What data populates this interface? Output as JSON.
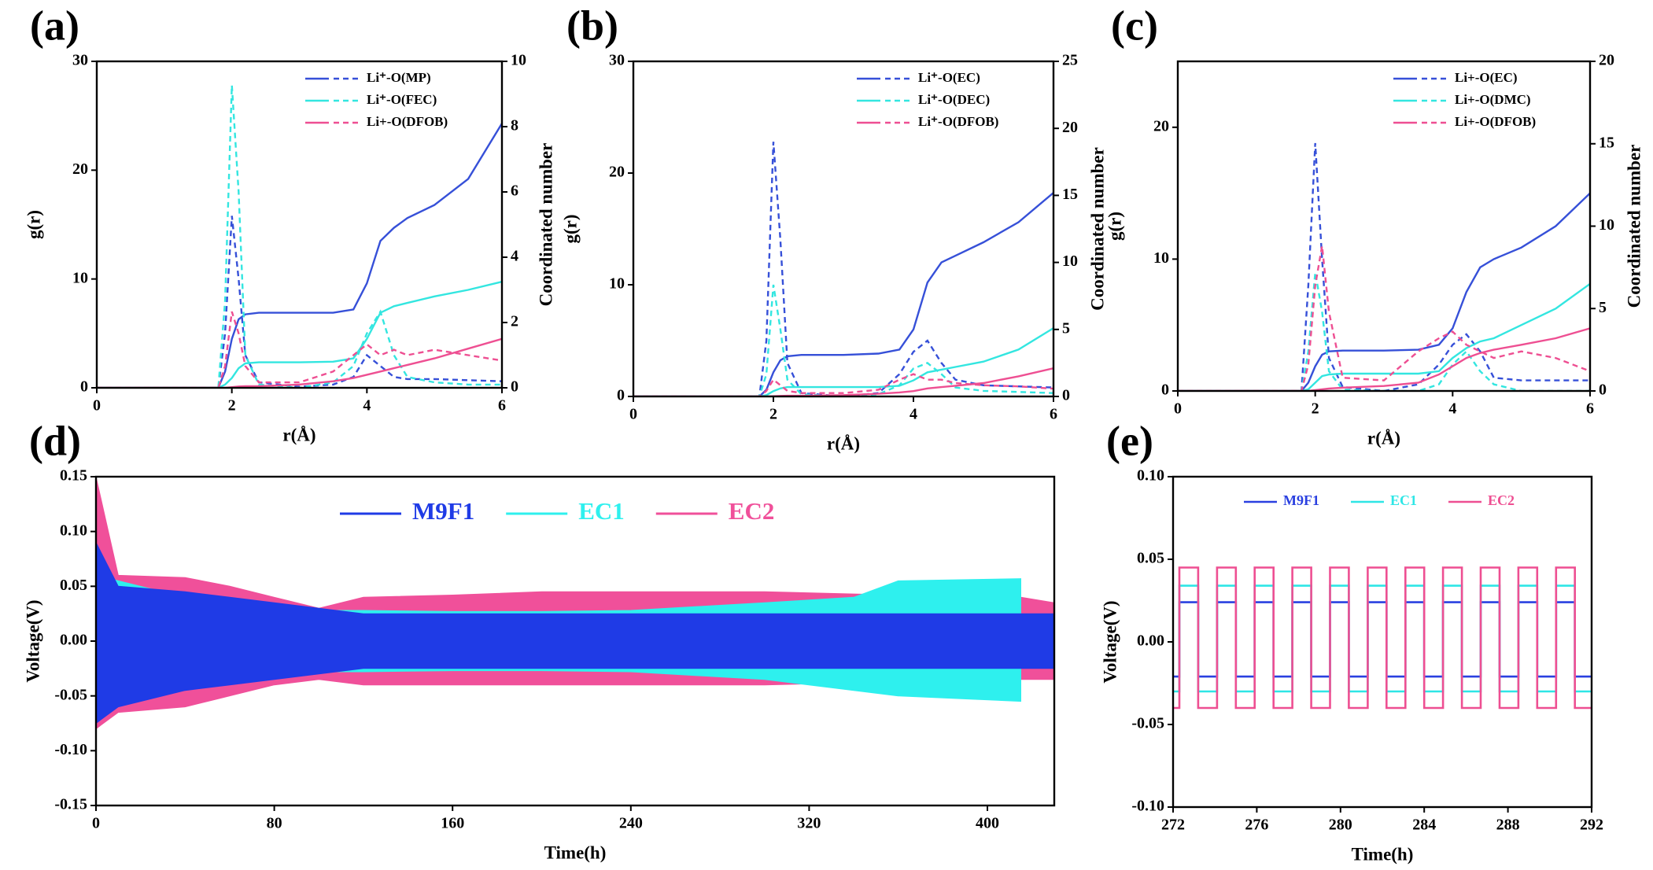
{
  "chart_data": [
    {
      "type": "line",
      "label": "(a)",
      "xlabel": "r(Å)",
      "ylabel": "g(r)",
      "y2label": "Coordinated number",
      "xlim": [
        0,
        6
      ],
      "xticks": [
        0,
        2,
        4,
        6
      ],
      "ylim": [
        0,
        30
      ],
      "yticks": [
        0,
        10,
        20,
        30
      ],
      "y2lim": [
        0,
        10
      ],
      "y2ticks": [
        0,
        2,
        4,
        6,
        8,
        10
      ],
      "x": [
        0,
        1.8,
        1.9,
        2.0,
        2.1,
        2.2,
        2.4,
        3,
        3.5,
        3.8,
        4.0,
        4.2,
        4.4,
        4.6,
        5,
        5.5,
        6
      ],
      "series": [
        {
          "name": "Li⁺-O(MP)",
          "color": "#3650d8",
          "values": [
            0,
            0,
            5,
            15.8,
            10,
            3,
            0.5,
            0.1,
            0.3,
            1,
            3,
            2,
            1,
            0.8,
            0.8,
            0.7,
            0.6
          ],
          "cn_values": [
            0,
            0,
            0.5,
            1.5,
            2.1,
            2.25,
            2.3,
            2.3,
            2.3,
            2.4,
            3.2,
            4.5,
            4.9,
            5.2,
            5.6,
            6.4,
            8.1
          ]
        },
        {
          "name": "Li⁺-O(FEC)",
          "color": "#33e6e0",
          "values": [
            0,
            0,
            8,
            27.8,
            18,
            3,
            0.3,
            0,
            0.5,
            2,
            5,
            7,
            3,
            1,
            0.5,
            0.3,
            0.3
          ],
          "cn_values": [
            0,
            0,
            0.1,
            0.3,
            0.6,
            0.75,
            0.78,
            0.78,
            0.8,
            0.9,
            1.5,
            2.3,
            2.5,
            2.6,
            2.8,
            3.0,
            3.25
          ]
        },
        {
          "name": "Li+-O(DFOB)",
          "color": "#ee4f92",
          "values": [
            0,
            0,
            2,
            7,
            5,
            2,
            0.5,
            0.5,
            1.5,
            3,
            4,
            3,
            3.5,
            3,
            3.5,
            3,
            2.5
          ],
          "cn_values": [
            0,
            0,
            0,
            0.02,
            0.04,
            0.05,
            0.05,
            0.1,
            0.2,
            0.3,
            0.4,
            0.5,
            0.6,
            0.7,
            0.9,
            1.2,
            1.5
          ]
        }
      ]
    },
    {
      "type": "line",
      "label": "(b)",
      "xlabel": "r(Å)",
      "ylabel": "g(r)",
      "y2label": "Coordinated number",
      "xlim": [
        0,
        6
      ],
      "xticks": [
        0,
        2,
        4,
        6
      ],
      "ylim": [
        0,
        30
      ],
      "yticks": [
        0,
        10,
        20,
        30
      ],
      "y2lim": [
        0,
        25
      ],
      "y2ticks": [
        0,
        5,
        10,
        15,
        20,
        25
      ],
      "x": [
        0,
        1.8,
        1.9,
        2.0,
        2.1,
        2.2,
        2.4,
        3,
        3.5,
        3.8,
        4.0,
        4.2,
        4.4,
        4.6,
        5,
        5.5,
        6
      ],
      "series": [
        {
          "name": "Li⁺-O(EC)",
          "color": "#3650d8",
          "values": [
            0,
            0,
            5,
            22.8,
            14,
            3,
            0.3,
            0,
            0.3,
            2,
            4,
            5,
            3,
            1.5,
            1,
            0.9,
            0.8
          ],
          "cn_values": [
            0,
            0,
            0.5,
            1.8,
            2.7,
            3,
            3.1,
            3.1,
            3.2,
            3.5,
            5,
            8.5,
            10,
            10.5,
            11.5,
            13,
            15.2
          ]
        },
        {
          "name": "Li⁺-O(DEC)",
          "color": "#33e6e0",
          "values": [
            0,
            0,
            2,
            10,
            6,
            1.5,
            0.2,
            0,
            0.2,
            1,
            2.5,
            3,
            2,
            0.8,
            0.5,
            0.4,
            0.3
          ],
          "cn_values": [
            0,
            0,
            0.1,
            0.4,
            0.6,
            0.7,
            0.7,
            0.7,
            0.7,
            0.8,
            1.2,
            1.8,
            2,
            2.2,
            2.6,
            3.5,
            5.1
          ]
        },
        {
          "name": "Li⁺-O(DFOB)",
          "color": "#ee4f92",
          "values": [
            0,
            0,
            0.5,
            1.5,
            1,
            0.5,
            0.3,
            0.3,
            0.6,
            1.5,
            2,
            1.5,
            1.5,
            1.2,
            1,
            0.9,
            0.7
          ],
          "cn_values": [
            0,
            0,
            0,
            0.02,
            0.04,
            0.05,
            0.05,
            0.1,
            0.2,
            0.3,
            0.4,
            0.6,
            0.7,
            0.8,
            1,
            1.5,
            2.1
          ]
        }
      ]
    },
    {
      "type": "line",
      "label": "(c)",
      "xlabel": "r(Å)",
      "ylabel": "g(r)",
      "y2label": "Coordinated number",
      "xlim": [
        0,
        6
      ],
      "xticks": [
        0,
        2,
        4,
        6
      ],
      "ylim": [
        0,
        25
      ],
      "yticks": [
        0,
        10,
        20
      ],
      "y2lim": [
        0,
        20
      ],
      "y2ticks": [
        0,
        5,
        10,
        15,
        20
      ],
      "x": [
        0,
        1.8,
        1.9,
        2.0,
        2.1,
        2.2,
        2.4,
        3,
        3.5,
        3.8,
        4.0,
        4.2,
        4.4,
        4.6,
        5,
        5.5,
        6
      ],
      "series": [
        {
          "name": "Li+-O(EC)",
          "color": "#3650d8",
          "values": [
            0,
            0,
            8,
            18.8,
            10,
            2.5,
            0.3,
            0,
            0.5,
            2,
            3.5,
            4.3,
            3,
            1,
            0.8,
            0.8,
            0.8
          ],
          "cn_values": [
            0,
            0,
            0.5,
            1.5,
            2.2,
            2.4,
            2.45,
            2.45,
            2.5,
            2.8,
            3.8,
            6,
            7.5,
            8,
            8.7,
            10,
            12
          ]
        },
        {
          "name": "Li+-O(DMC)",
          "color": "#33e6e0",
          "values": [
            0,
            0,
            3,
            9,
            6,
            1.5,
            0.1,
            0,
            0,
            0.5,
            2,
            3,
            1.5,
            0.5,
            0,
            0,
            0
          ],
          "cn_values": [
            0,
            0,
            0.1,
            0.5,
            0.9,
            1,
            1.05,
            1.05,
            1.05,
            1.2,
            2,
            2.6,
            3,
            3.2,
            4,
            5,
            6.5
          ]
        },
        {
          "name": "Li+-O(DFOB)",
          "color": "#ee4f92",
          "values": [
            0,
            0,
            2,
            8,
            11,
            6,
            1,
            0.8,
            3,
            4,
            4.5,
            3.5,
            3,
            2.5,
            3,
            2.5,
            1.5
          ],
          "cn_values": [
            0,
            0,
            0,
            0.05,
            0.1,
            0.15,
            0.2,
            0.3,
            0.5,
            1,
            1.5,
            2,
            2.3,
            2.5,
            2.8,
            3.2,
            3.8
          ]
        }
      ]
    },
    {
      "type": "area",
      "label": "(d)",
      "xlabel": "Time(h)",
      "ylabel": "Voltage(V)",
      "xlim": [
        0,
        430
      ],
      "xticks": [
        0,
        80,
        160,
        240,
        320,
        400
      ],
      "ylim": [
        -0.15,
        0.15
      ],
      "yticks": [
        -0.15,
        {
          "value": -0.1,
          "label": "-0.10"
        },
        -0.05,
        {
          "value": 0,
          "label": "0.00"
        },
        0.05,
        {
          "value": 0.1,
          "label": "0.10"
        },
        0.15
      ],
      "x": [
        0,
        10,
        40,
        60,
        80,
        100,
        120,
        160,
        200,
        240,
        300,
        340,
        360,
        415,
        430
      ],
      "series": [
        {
          "name": "EC2",
          "color": "#f0509a",
          "upper": [
            0.15,
            0.06,
            0.058,
            0.05,
            0.04,
            0.03,
            0.04,
            0.042,
            0.045,
            0.045,
            0.045,
            0.043,
            0.042,
            0.04,
            0.035
          ],
          "lower": [
            -0.08,
            -0.065,
            -0.06,
            -0.05,
            -0.04,
            -0.035,
            -0.04,
            -0.04,
            -0.04,
            -0.04,
            -0.04,
            -0.038,
            -0.037,
            -0.035,
            -0.035
          ]
        },
        {
          "name": "EC1",
          "color": "#2ef0ee",
          "upper": [
            0.06,
            0.055,
            0.04,
            0.03,
            0.029,
            0.028,
            0.028,
            0.027,
            0.027,
            0.028,
            0.035,
            0.04,
            0.055,
            0.057,
            null
          ],
          "lower": [
            -0.06,
            -0.055,
            -0.04,
            -0.03,
            -0.029,
            -0.028,
            -0.028,
            -0.027,
            -0.027,
            -0.028,
            -0.035,
            -0.045,
            -0.05,
            -0.055,
            null
          ]
        },
        {
          "name": "M9F1",
          "color": "#1f3be6",
          "upper": [
            0.09,
            0.05,
            0.045,
            0.04,
            0.035,
            0.03,
            0.025,
            0.025,
            0.025,
            0.025,
            0.025,
            0.025,
            0.025,
            0.025,
            0.025
          ],
          "lower": [
            -0.075,
            -0.06,
            -0.045,
            -0.04,
            -0.035,
            -0.03,
            -0.025,
            -0.025,
            -0.025,
            -0.025,
            -0.025,
            -0.025,
            -0.025,
            -0.025,
            -0.025
          ]
        }
      ]
    },
    {
      "type": "step",
      "label": "(e)",
      "xlabel": "Time(h)",
      "ylabel": "Voltage(V)",
      "xlim": [
        272,
        292
      ],
      "xticks": [
        272,
        276,
        280,
        284,
        288,
        292
      ],
      "ylim": [
        -0.1,
        0.1
      ],
      "yticks": [
        {
          "value": -0.1,
          "label": "-0.10"
        },
        -0.05,
        {
          "value": 0,
          "label": "0.00"
        },
        0.05,
        {
          "value": 0.1,
          "label": "0.10"
        }
      ],
      "x": [
        272,
        272.3,
        273.2,
        274.1,
        275,
        275.9,
        276.8,
        277.7,
        278.6,
        279.5,
        280.4,
        281.3,
        282.2,
        283.1,
        284,
        284.9,
        285.8,
        286.7,
        287.6,
        288.5,
        289.4,
        290.3,
        291.2,
        292
      ],
      "series": [
        {
          "name": "M9F1",
          "color": "#2a40e0",
          "values": [
            -0.021,
            0.024,
            -0.021,
            0.024,
            -0.021,
            0.024,
            -0.021,
            0.024,
            -0.021,
            0.024,
            -0.021,
            0.024,
            -0.021,
            0.024,
            -0.021,
            0.024,
            -0.021,
            0.024,
            -0.021,
            0.024,
            -0.021,
            0.024,
            -0.021,
            -0.021
          ]
        },
        {
          "name": "EC1",
          "color": "#2ee6e6",
          "values": [
            -0.03,
            0.034,
            -0.03,
            0.034,
            -0.03,
            0.034,
            -0.03,
            0.034,
            -0.03,
            0.034,
            -0.03,
            0.034,
            -0.03,
            0.034,
            -0.03,
            0.034,
            -0.03,
            0.034,
            -0.03,
            0.034,
            -0.03,
            0.034,
            -0.03,
            -0.03
          ]
        },
        {
          "name": "EC2",
          "color": "#ee4f92",
          "values": [
            -0.04,
            0.045,
            -0.04,
            0.045,
            -0.04,
            0.045,
            -0.04,
            0.045,
            -0.04,
            0.045,
            -0.04,
            0.045,
            -0.04,
            0.045,
            -0.04,
            0.045,
            -0.04,
            0.045,
            -0.04,
            0.045,
            -0.04,
            0.045,
            -0.04,
            -0.04
          ]
        }
      ]
    }
  ]
}
